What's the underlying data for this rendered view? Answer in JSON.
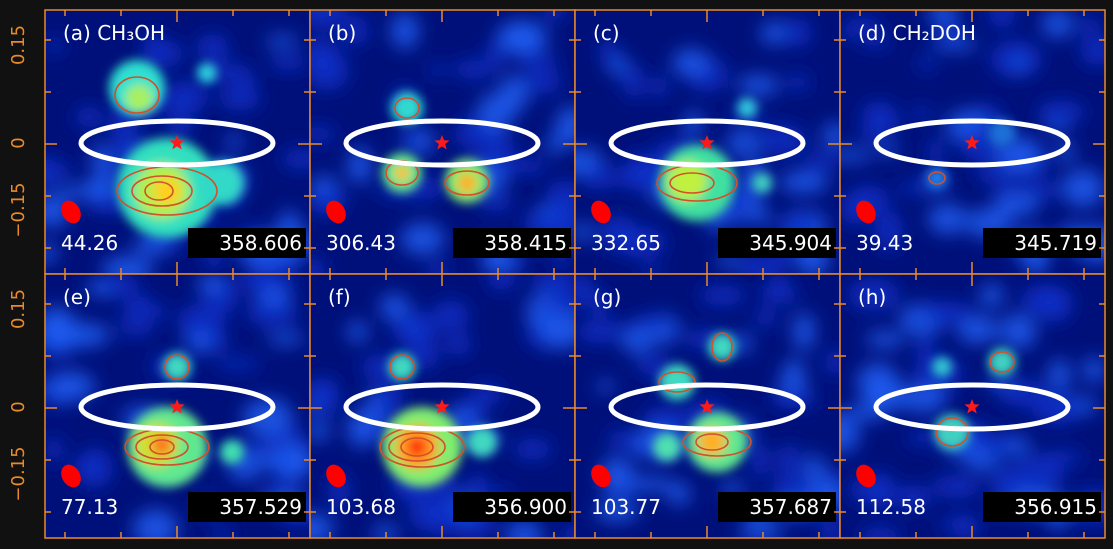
{
  "y_axis_ticks": [
    "0.15",
    "0",
    "−0.15"
  ],
  "panels": [
    {
      "label": "(a) CH₃OH",
      "energy": "44.26",
      "frequency": "358.606"
    },
    {
      "label": "(b)",
      "energy": "306.43",
      "frequency": "358.415"
    },
    {
      "label": "(c)",
      "energy": "332.65",
      "frequency": "345.904"
    },
    {
      "label": "(d) CH₂DOH",
      "energy": "39.43",
      "frequency": "345.719"
    },
    {
      "label": "(e)",
      "energy": "77.13",
      "frequency": "357.529"
    },
    {
      "label": "(f)",
      "energy": "103.68",
      "frequency": "356.900"
    },
    {
      "label": "(g)",
      "energy": "103.77",
      "frequency": "357.687"
    },
    {
      "label": "(h)",
      "energy": "112.58",
      "frequency": "356.915"
    }
  ]
}
